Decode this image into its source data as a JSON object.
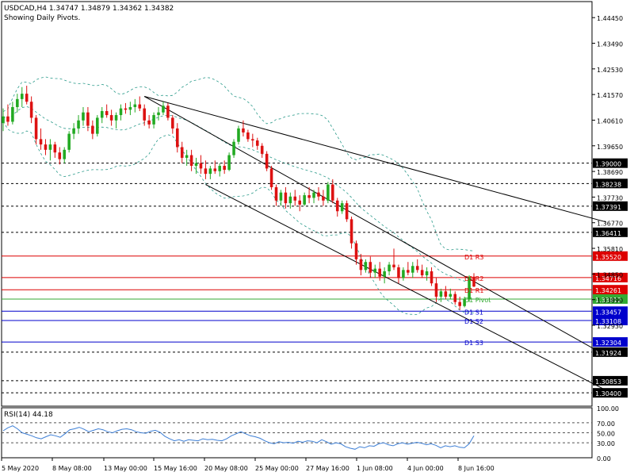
{
  "header": {
    "symbol_line": "USDCAD,H4  1.34747 1.34879 1.34362 1.34382",
    "subtitle": "Showing Daily Pivots."
  },
  "chart_data": [
    {
      "type": "candlestick",
      "symbol": "USDCAD",
      "timeframe": "H4",
      "ohlc_last": {
        "open": 1.34747,
        "high": 1.34879,
        "low": 1.34362,
        "close": 1.34382
      },
      "ylim": [
        1.299,
        1.4505
      ],
      "y_ticks": [
        "1.44450",
        "1.43490",
        "1.42530",
        "1.41570",
        "1.40610",
        "1.39650",
        "1.38690",
        "1.37730",
        "1.36770",
        "1.35810",
        "1.34850",
        "1.33890",
        "1.32930"
      ],
      "x_ticks": [
        "5 May 2020",
        "8 May 08:00",
        "13 May 00:00",
        "15 May 16:00",
        "20 May 08:00",
        "25 May 00:00",
        "27 May 16:00",
        "1 Jun 08:00",
        "4 Jun 00:00",
        "8 Jun 16:00"
      ],
      "series": [
        {
          "name": "USDCAD",
          "values": [
            [
              1.405,
              1.4105,
              1.402,
              1.4075
            ],
            [
              1.4075,
              1.412,
              1.404,
              1.4055
            ],
            [
              1.4055,
              1.413,
              1.4045,
              1.411
            ],
            [
              1.411,
              1.416,
              1.409,
              1.414
            ],
            [
              1.414,
              1.4185,
              1.411,
              1.416
            ],
            [
              1.416,
              1.419,
              1.412,
              1.413
            ],
            [
              1.413,
              1.415,
              1.405,
              1.407
            ],
            [
              1.407,
              1.408,
              1.397,
              1.399
            ],
            [
              1.399,
              1.403,
              1.395,
              1.397
            ],
            [
              1.397,
              1.399,
              1.393,
              1.395
            ],
            [
              1.395,
              1.399,
              1.391,
              1.397
            ],
            [
              1.397,
              1.398,
              1.392,
              1.394
            ],
            [
              1.394,
              1.396,
              1.3895,
              1.3915
            ],
            [
              1.3915,
              1.396,
              1.39,
              1.395
            ],
            [
              1.395,
              1.402,
              1.394,
              1.401
            ],
            [
              1.401,
              1.405,
              1.399,
              1.403
            ],
            [
              1.403,
              1.408,
              1.401,
              1.406
            ],
            [
              1.406,
              1.411,
              1.404,
              1.409
            ],
            [
              1.409,
              1.411,
              1.402,
              1.404
            ],
            [
              1.404,
              1.406,
              1.399,
              1.401
            ],
            [
              1.401,
              1.408,
              1.4,
              1.407
            ],
            [
              1.407,
              1.411,
              1.405,
              1.4095
            ],
            [
              1.4095,
              1.412,
              1.407,
              1.408
            ],
            [
              1.408,
              1.41,
              1.404,
              1.406
            ],
            [
              1.406,
              1.409,
              1.403,
              1.408
            ],
            [
              1.408,
              1.412,
              1.406,
              1.4105
            ],
            [
              1.4105,
              1.4125,
              1.4085,
              1.41
            ],
            [
              1.41,
              1.413,
              1.408,
              1.411
            ],
            [
              1.411,
              1.414,
              1.409,
              1.412
            ],
            [
              1.412,
              1.415,
              1.4095,
              1.4105
            ],
            [
              1.4105,
              1.412,
              1.404,
              1.406
            ],
            [
              1.406,
              1.408,
              1.403,
              1.4045
            ],
            [
              1.4045,
              1.409,
              1.403,
              1.408
            ],
            [
              1.408,
              1.411,
              1.406,
              1.409
            ],
            [
              1.409,
              1.413,
              1.408,
              1.4115
            ],
            [
              1.4115,
              1.4125,
              1.406,
              1.407
            ],
            [
              1.407,
              1.408,
              1.401,
              1.403
            ],
            [
              1.403,
              1.405,
              1.394,
              1.396
            ],
            [
              1.396,
              1.398,
              1.39,
              1.392
            ],
            [
              1.392,
              1.395,
              1.389,
              1.393
            ],
            [
              1.393,
              1.395,
              1.387,
              1.389
            ],
            [
              1.389,
              1.392,
              1.386,
              1.39
            ],
            [
              1.39,
              1.393,
              1.386,
              1.388
            ],
            [
              1.388,
              1.391,
              1.384,
              1.386
            ],
            [
              1.386,
              1.389,
              1.384,
              1.388
            ],
            [
              1.388,
              1.391,
              1.386,
              1.387
            ],
            [
              1.387,
              1.39,
              1.385,
              1.389
            ],
            [
              1.389,
              1.391,
              1.386,
              1.3875
            ],
            [
              1.3875,
              1.394,
              1.387,
              1.393
            ],
            [
              1.393,
              1.399,
              1.392,
              1.398
            ],
            [
              1.398,
              1.404,
              1.397,
              1.403
            ],
            [
              1.403,
              1.406,
              1.4,
              1.4015
            ],
            [
              1.4015,
              1.4025,
              1.398,
              1.399
            ],
            [
              1.399,
              1.401,
              1.396,
              1.3985
            ],
            [
              1.3985,
              1.3995,
              1.395,
              1.3965
            ],
            [
              1.3965,
              1.3975,
              1.392,
              1.3935
            ],
            [
              1.3935,
              1.3945,
              1.387,
              1.388
            ],
            [
              1.388,
              1.389,
              1.38,
              1.381
            ],
            [
              1.381,
              1.382,
              1.374,
              1.376
            ],
            [
              1.376,
              1.38,
              1.374,
              1.379
            ],
            [
              1.379,
              1.381,
              1.373,
              1.375
            ],
            [
              1.375,
              1.379,
              1.373,
              1.3775
            ],
            [
              1.3775,
              1.38,
              1.374,
              1.376
            ],
            [
              1.376,
              1.378,
              1.372,
              1.3745
            ],
            [
              1.3745,
              1.379,
              1.374,
              1.378
            ],
            [
              1.378,
              1.381,
              1.375,
              1.377
            ],
            [
              1.377,
              1.38,
              1.375,
              1.379
            ],
            [
              1.379,
              1.381,
              1.376,
              1.3775
            ],
            [
              1.3775,
              1.38,
              1.374,
              1.376
            ],
            [
              1.376,
              1.383,
              1.375,
              1.382
            ],
            [
              1.382,
              1.384,
              1.375,
              1.376
            ],
            [
              1.376,
              1.377,
              1.37,
              1.372
            ],
            [
              1.372,
              1.376,
              1.371,
              1.375
            ],
            [
              1.375,
              1.376,
              1.368,
              1.369
            ],
            [
              1.369,
              1.37,
              1.358,
              1.36
            ],
            [
              1.36,
              1.361,
              1.352,
              1.354
            ],
            [
              1.354,
              1.356,
              1.348,
              1.35
            ],
            [
              1.35,
              1.354,
              1.349,
              1.353
            ],
            [
              1.353,
              1.355,
              1.347,
              1.349
            ],
            [
              1.349,
              1.352,
              1.347,
              1.3505
            ],
            [
              1.3505,
              1.353,
              1.346,
              1.3475
            ],
            [
              1.3475,
              1.351,
              1.345,
              1.3495
            ],
            [
              1.3495,
              1.353,
              1.348,
              1.352
            ],
            [
              1.352,
              1.358,
              1.35,
              1.351
            ],
            [
              1.351,
              1.352,
              1.345,
              1.347
            ],
            [
              1.347,
              1.351,
              1.346,
              1.35
            ],
            [
              1.35,
              1.353,
              1.348,
              1.349
            ],
            [
              1.349,
              1.353,
              1.347,
              1.3515
            ],
            [
              1.3515,
              1.354,
              1.349,
              1.35
            ],
            [
              1.35,
              1.352,
              1.347,
              1.348
            ],
            [
              1.348,
              1.351,
              1.346,
              1.3495
            ],
            [
              1.3495,
              1.351,
              1.344,
              1.345
            ],
            [
              1.345,
              1.347,
              1.338,
              1.34
            ],
            [
              1.34,
              1.343,
              1.338,
              1.342
            ],
            [
              1.342,
              1.344,
              1.339,
              1.34
            ],
            [
              1.34,
              1.343,
              1.339,
              1.341
            ],
            [
              1.341,
              1.342,
              1.337,
              1.338
            ],
            [
              1.338,
              1.34,
              1.335,
              1.3365
            ],
            [
              1.3365,
              1.34,
              1.336,
              1.339
            ],
            [
              1.339,
              1.348,
              1.338,
              1.3475
            ],
            [
              1.3475,
              1.3488,
              1.3436,
              1.3438
            ]
          ]
        }
      ],
      "bollinger": {
        "middle_values_from_close": true,
        "band_width": 0.006
      },
      "pivot_levels": [
        {
          "name": "D1 R3",
          "value": 1.3552,
          "color": "#dd0000"
        },
        {
          "name": "D1 R2",
          "value": 1.34716,
          "color": "#dd0000"
        },
        {
          "name": "D1 R1",
          "value": 1.34261,
          "color": "#dd0000"
        },
        {
          "name": "D1 Pivot",
          "value": 1.33912,
          "color": "#33aa33"
        },
        {
          "name": "D1 S1",
          "value": 1.33457,
          "color": "#0000cc"
        },
        {
          "name": "D1 S2",
          "value": 1.33108,
          "color": "#0000cc"
        },
        {
          "name": "D1 S3",
          "value": 1.32304,
          "color": "#0000cc"
        }
      ],
      "dotted_levels": [
        "1.39000",
        "1.38238",
        "1.37391",
        "1.36411",
        "1.31924",
        "1.30853",
        "1.30400"
      ],
      "trendlines": [
        {
          "from": [
            30,
            1.415
          ],
          "to": [
            128,
            1.368
          ]
        },
        {
          "from": [
            30,
            1.415
          ],
          "to": [
            128,
            1.318
          ]
        },
        {
          "from": [
            43,
            1.382
          ],
          "to": [
            128,
            1.305
          ]
        }
      ]
    },
    {
      "type": "line",
      "name": "RSI(14) 44.18",
      "ylim": [
        0,
        100
      ],
      "y_ticks": [
        "100.00",
        "70.00",
        "50.00",
        "30.00",
        "0.00"
      ],
      "values": [
        54,
        60,
        64,
        58,
        50,
        47,
        44,
        40,
        38,
        42,
        46,
        44,
        41,
        48,
        56,
        58,
        61,
        57,
        52,
        55,
        58,
        56,
        52,
        50,
        54,
        57,
        58,
        56,
        52,
        50,
        49,
        53,
        55,
        51,
        43,
        38,
        34,
        36,
        33,
        36,
        35,
        34,
        38,
        36,
        37,
        35,
        34,
        38,
        44,
        48,
        52,
        48,
        44,
        42,
        39,
        34,
        30,
        28,
        32,
        30,
        31,
        29,
        33,
        31,
        34,
        33,
        30,
        36,
        32,
        27,
        30,
        28,
        22,
        19,
        17,
        22,
        20,
        24,
        23,
        28,
        30,
        26,
        24,
        28,
        30,
        27,
        29,
        31,
        29,
        26,
        28,
        25,
        20,
        24,
        22,
        24,
        21,
        20,
        28,
        44
      ]
    }
  ]
}
